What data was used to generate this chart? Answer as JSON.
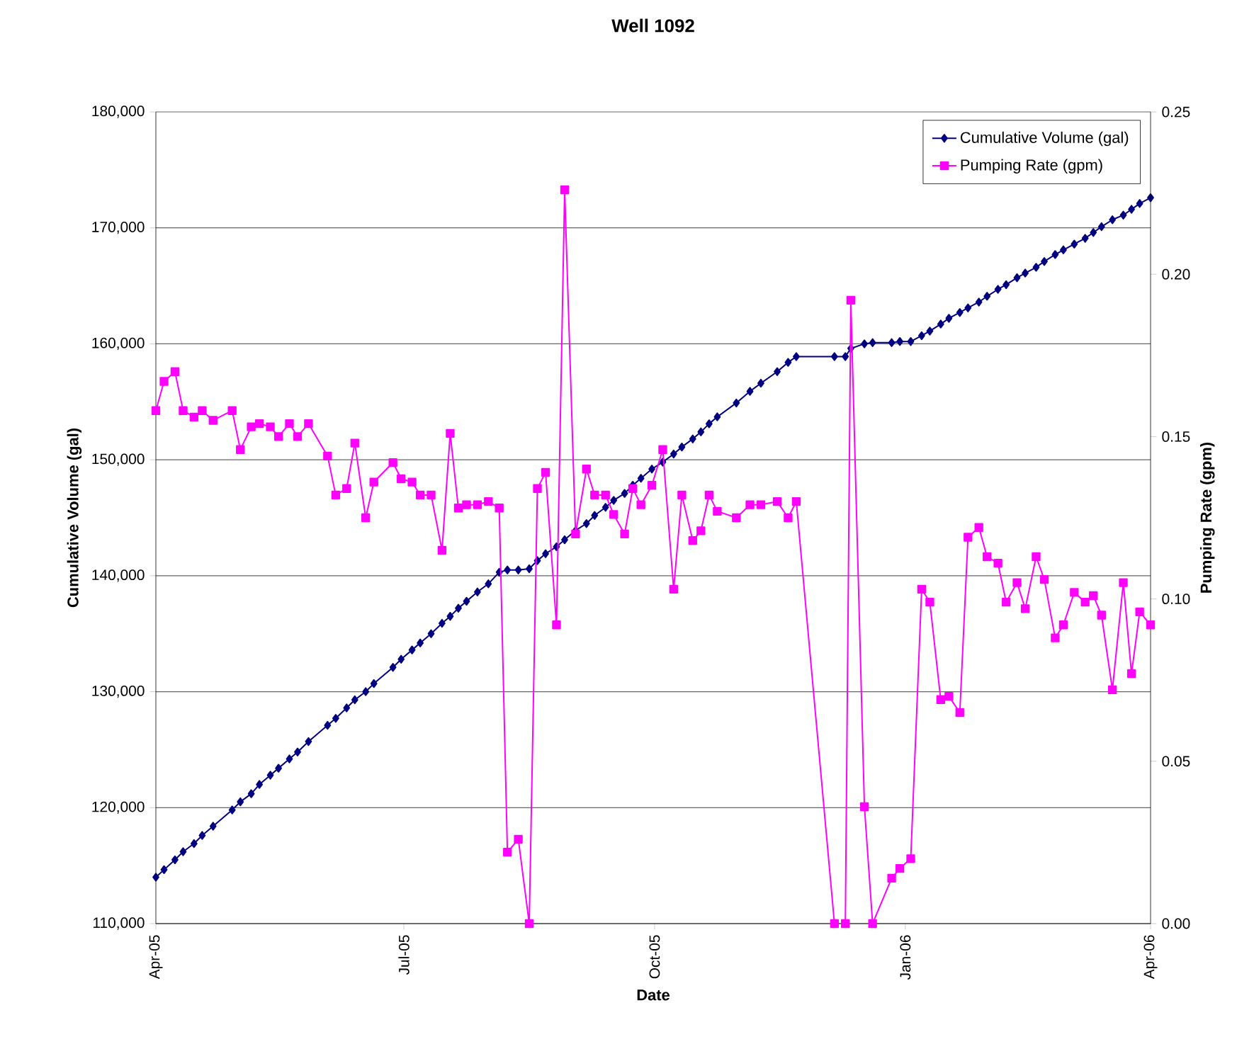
{
  "chart_data": {
    "type": "line",
    "title": "Well 1092",
    "xlabel": "Date",
    "ylabel": "Cumulative Volume (gal)",
    "y2label": "Pumping Rate (gpm)",
    "x": [
      "2005-04-01",
      "2005-04-04",
      "2005-04-08",
      "2005-04-11",
      "2005-04-15",
      "2005-04-18",
      "2005-04-22",
      "2005-04-29",
      "2005-05-02",
      "2005-05-06",
      "2005-05-09",
      "2005-05-13",
      "2005-05-16",
      "2005-05-20",
      "2005-05-23",
      "2005-05-27",
      "2005-06-03",
      "2005-06-06",
      "2005-06-10",
      "2005-06-13",
      "2005-06-17",
      "2005-06-20",
      "2005-06-27",
      "2005-06-30",
      "2005-07-04",
      "2005-07-07",
      "2005-07-11",
      "2005-07-15",
      "2005-07-18",
      "2005-07-21",
      "2005-07-24",
      "2005-07-28",
      "2005-08-01",
      "2005-08-05",
      "2005-08-08",
      "2005-08-12",
      "2005-08-16",
      "2005-08-19",
      "2005-08-22",
      "2005-08-26",
      "2005-08-29",
      "2005-09-02",
      "2005-09-06",
      "2005-09-09",
      "2005-09-13",
      "2005-09-16",
      "2005-09-20",
      "2005-09-23",
      "2005-09-26",
      "2005-09-30",
      "2005-10-04",
      "2005-10-08",
      "2005-10-11",
      "2005-10-15",
      "2005-10-18",
      "2005-10-21",
      "2005-10-24",
      "2005-10-31",
      "2005-11-05",
      "2005-11-09",
      "2005-11-15",
      "2005-11-19",
      "2005-11-22",
      "2005-12-06",
      "2005-12-10",
      "2005-12-12",
      "2005-12-17",
      "2005-12-20",
      "2005-12-27",
      "2005-12-30",
      "2006-01-03",
      "2006-01-07",
      "2006-01-10",
      "2006-01-14",
      "2006-01-17",
      "2006-01-21",
      "2006-01-24",
      "2006-01-28",
      "2006-01-31",
      "2006-02-04",
      "2006-02-07",
      "2006-02-11",
      "2006-02-14",
      "2006-02-18",
      "2006-02-21",
      "2006-02-25",
      "2006-02-28",
      "2006-03-04",
      "2006-03-08",
      "2006-03-11",
      "2006-03-14",
      "2006-03-18",
      "2006-03-22",
      "2006-03-25",
      "2006-03-28",
      "2006-04-01"
    ],
    "xlim": [
      "2005-04-01",
      "2006-04-01"
    ],
    "xticks": [
      {
        "value": "2005-04-01",
        "label": "Apr-05"
      },
      {
        "value": "2005-07-01",
        "label": "Jul-05"
      },
      {
        "value": "2005-10-01",
        "label": "Oct-05"
      },
      {
        "value": "2006-01-01",
        "label": "Jan-06"
      },
      {
        "value": "2006-04-01",
        "label": "Apr-06"
      }
    ],
    "ylim": [
      110000,
      180000
    ],
    "yticks": [
      {
        "value": 110000,
        "label": "110,000"
      },
      {
        "value": 120000,
        "label": "120,000"
      },
      {
        "value": 130000,
        "label": "130,000"
      },
      {
        "value": 140000,
        "label": "140,000"
      },
      {
        "value": 150000,
        "label": "150,000"
      },
      {
        "value": 160000,
        "label": "160,000"
      },
      {
        "value": 170000,
        "label": "170,000"
      },
      {
        "value": 180000,
        "label": "180,000"
      }
    ],
    "y2lim": [
      0,
      0.25
    ],
    "y2ticks": [
      {
        "value": 0,
        "label": "0.00"
      },
      {
        "value": 0.05,
        "label": "0.05"
      },
      {
        "value": 0.1,
        "label": "0.10"
      },
      {
        "value": 0.15,
        "label": "0.15"
      },
      {
        "value": 0.2,
        "label": "0.20"
      },
      {
        "value": 0.25,
        "label": "0.25"
      }
    ],
    "grid": "y",
    "legend": "top right",
    "series": [
      {
        "name": "Cumulative Volume (gal)",
        "color": "#000080",
        "marker": "diamond",
        "values": [
          114000,
          114650,
          115500,
          116200,
          116900,
          117600,
          118400,
          119800,
          120500,
          121200,
          122000,
          122800,
          123400,
          124200,
          124800,
          125700,
          127100,
          127700,
          128600,
          129300,
          130000,
          130700,
          132100,
          132800,
          133600,
          134200,
          135000,
          135900,
          136500,
          137200,
          137800,
          138600,
          139300,
          140300,
          140500,
          140500,
          140600,
          141300,
          141900,
          142500,
          143100,
          143900,
          144500,
          145200,
          145900,
          146500,
          147100,
          147800,
          148400,
          149200,
          149800,
          150500,
          151100,
          151800,
          152400,
          153100,
          153700,
          154900,
          155900,
          156600,
          157600,
          158400,
          158900,
          158900,
          158900,
          159600,
          160000,
          160100,
          160100,
          160200,
          160200,
          160700,
          161100,
          161700,
          162200,
          162700,
          163100,
          163600,
          164100,
          164700,
          165100,
          165700,
          166100,
          166600,
          167100,
          167700,
          168100,
          168600,
          169100,
          169600,
          170100,
          170700,
          171100,
          171600,
          172100,
          172600
        ]
      },
      {
        "name": "Pumping Rate (gpm)",
        "color": "#ff00ff",
        "marker": "square",
        "axis": "y2",
        "values": [
          0.158,
          0.167,
          0.17,
          0.158,
          0.156,
          0.158,
          0.155,
          0.158,
          0.146,
          0.153,
          0.154,
          0.153,
          0.15,
          0.154,
          0.15,
          0.154,
          0.144,
          0.132,
          0.134,
          0.148,
          0.125,
          0.136,
          0.142,
          0.137,
          0.136,
          0.132,
          0.132,
          0.115,
          0.151,
          0.128,
          0.129,
          0.129,
          0.13,
          0.128,
          0.022,
          0.026,
          0.0,
          0.134,
          0.139,
          0.092,
          0.226,
          0.12,
          0.14,
          0.132,
          0.132,
          0.126,
          0.12,
          0.134,
          0.129,
          0.135,
          0.146,
          0.103,
          0.132,
          0.118,
          0.121,
          0.132,
          0.127,
          0.125,
          0.129,
          0.129,
          0.13,
          0.125,
          0.13,
          0,
          0,
          0.192,
          0.036,
          0,
          0.014,
          0.017,
          0.02,
          0.103,
          0.099,
          0.069,
          0.07,
          0.065,
          0.119,
          0.122,
          0.113,
          0.111,
          0.099,
          0.105,
          0.097,
          0.113,
          0.106,
          0.088,
          0.092,
          0.102,
          0.099,
          0.101,
          0.095,
          0.072,
          0.105,
          0.077,
          0.096,
          0.092
        ]
      }
    ]
  }
}
